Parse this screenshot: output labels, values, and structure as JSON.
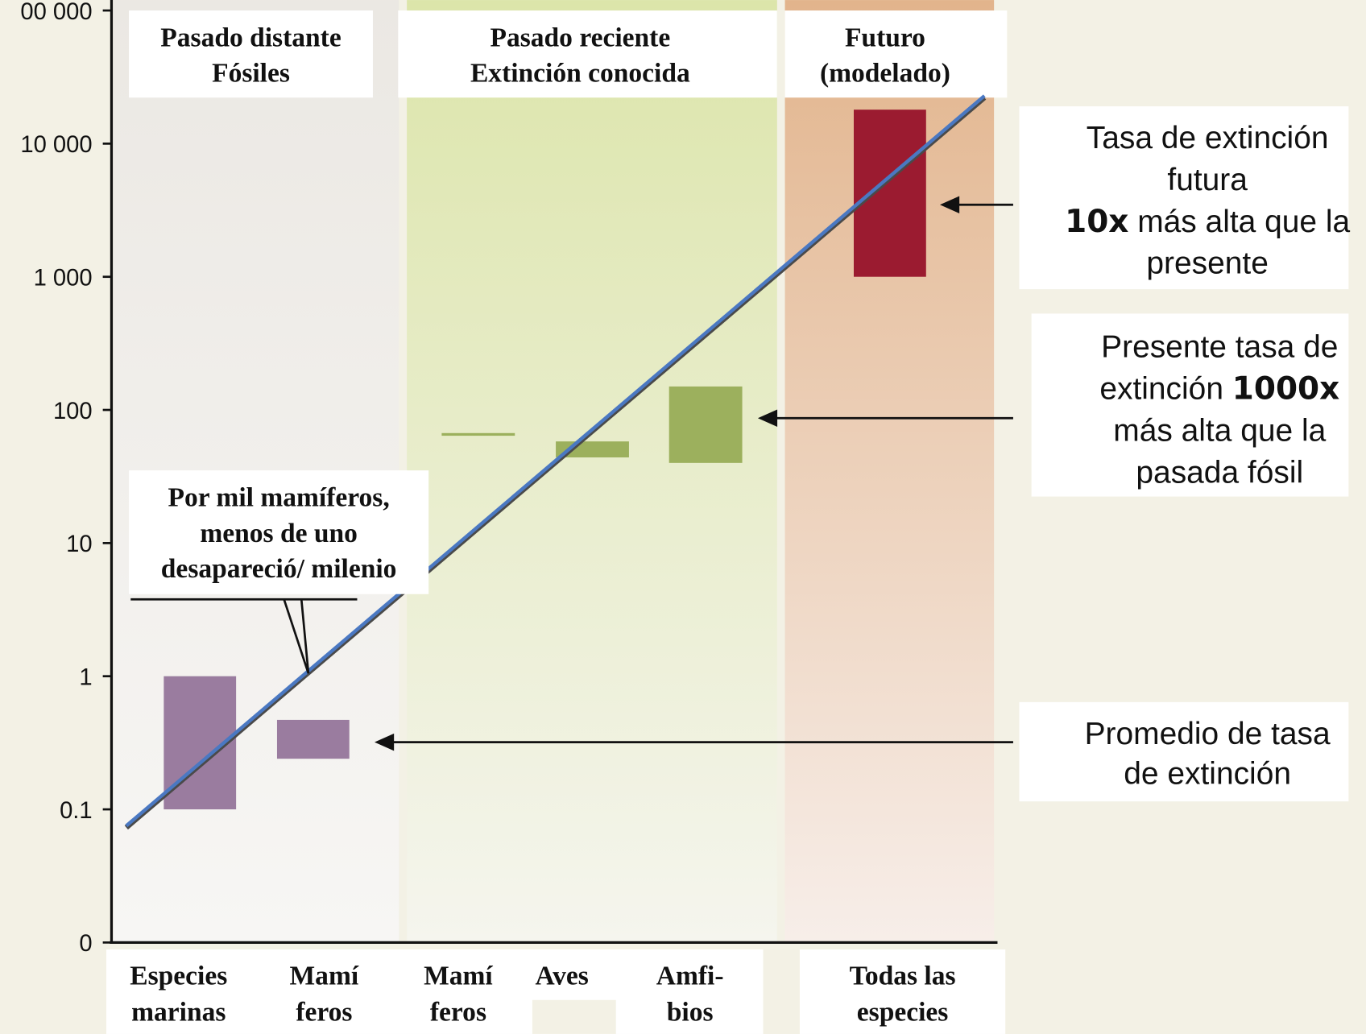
{
  "chart_data": {
    "type": "range-bar",
    "log_scale": true,
    "ylim": [
      0.01,
      100000
    ],
    "yticks": [
      {
        "value": 0.01,
        "label": "0"
      },
      0.1,
      1,
      10,
      100,
      {
        "value": 1000,
        "label": "1 000"
      },
      {
        "value": 10000,
        "label": "10 000"
      },
      {
        "value": 100000,
        "label": "00 000"
      }
    ],
    "regions": [
      [
        "Pasado distante",
        "Fósiles"
      ],
      [
        "Pasado reciente",
        "Extinción conocida"
      ],
      [
        "Futuro",
        "(modelado)"
      ]
    ],
    "categories": [
      [
        "Especies",
        "marinas"
      ],
      [
        "Mamí",
        "feros"
      ],
      [
        "Mamí",
        "feros"
      ],
      [
        "Aves"
      ],
      [
        "Amfi-",
        "bios"
      ],
      [
        "Todas las",
        "especies"
      ]
    ],
    "low": [
      0.1,
      0.24,
      64,
      44,
      40,
      1000
    ],
    "high": [
      1,
      0.47,
      67,
      58,
      150,
      18000
    ],
    "colors": [
      "#9a7c9f",
      "#9a7c9f",
      "#9cb05d",
      "#9cb05d",
      "#9cb05d",
      "#9b1b30"
    ],
    "callout": [
      "Por mil mamíferos,",
      "menos de uno",
      "desapareció/ milenio"
    ],
    "annotations": [
      [
        [
          [
            "Tasa de extinción"
          ]
        ],
        [
          [
            "futura"
          ]
        ],
        [
          [
            "10x",
            "b"
          ],
          [
            " más alta que la"
          ]
        ],
        [
          [
            "presente"
          ]
        ]
      ],
      [
        [
          [
            "Presente tasa de"
          ]
        ],
        [
          [
            "extinción "
          ],
          [
            "1000x",
            "b"
          ]
        ],
        [
          [
            "más alta que la"
          ]
        ],
        [
          [
            "pasada fósil"
          ]
        ]
      ],
      [
        [
          [
            "Promedio de tasa"
          ]
        ],
        [
          [
            "de extinción"
          ]
        ]
      ]
    ]
  }
}
